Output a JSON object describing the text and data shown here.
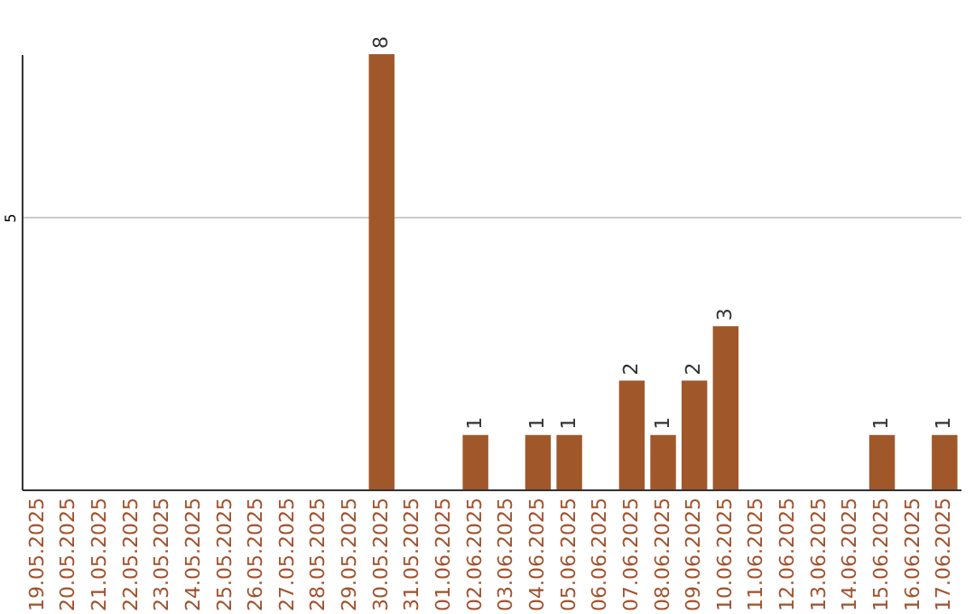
{
  "chart_data": {
    "type": "bar",
    "categories": [
      "19.05.2025",
      "20.05.2025",
      "21.05.2025",
      "22.05.2025",
      "23.05.2025",
      "24.05.2025",
      "25.05.2025",
      "26.05.2025",
      "27.05.2025",
      "28.05.2025",
      "29.05.2025",
      "30.05.2025",
      "31.05.2025",
      "01.06.2025",
      "02.06.2025",
      "03.06.2025",
      "04.06.2025",
      "05.06.2025",
      "06.06.2025",
      "07.06.2025",
      "08.06.2025",
      "09.06.2025",
      "10.06.2025",
      "11.06.2025",
      "12.06.2025",
      "13.06.2025",
      "14.06.2025",
      "15.06.2025",
      "16.06.2025",
      "17.06.2025"
    ],
    "values": [
      0,
      0,
      0,
      0,
      0,
      0,
      0,
      0,
      0,
      0,
      0,
      8,
      0,
      0,
      1,
      0,
      1,
      1,
      0,
      2,
      1,
      2,
      3,
      0,
      0,
      0,
      0,
      1,
      0,
      1
    ],
    "value_labels": [
      null,
      null,
      null,
      null,
      null,
      null,
      null,
      null,
      null,
      null,
      null,
      "8",
      null,
      null,
      "1",
      null,
      "1",
      "1",
      null,
      "2",
      "1",
      "2",
      "3",
      null,
      null,
      null,
      null,
      "1",
      null,
      "1"
    ],
    "color": "#a0582a",
    "ylim": [
      0,
      8
    ],
    "yticks": [
      5
    ],
    "grid": "y"
  }
}
